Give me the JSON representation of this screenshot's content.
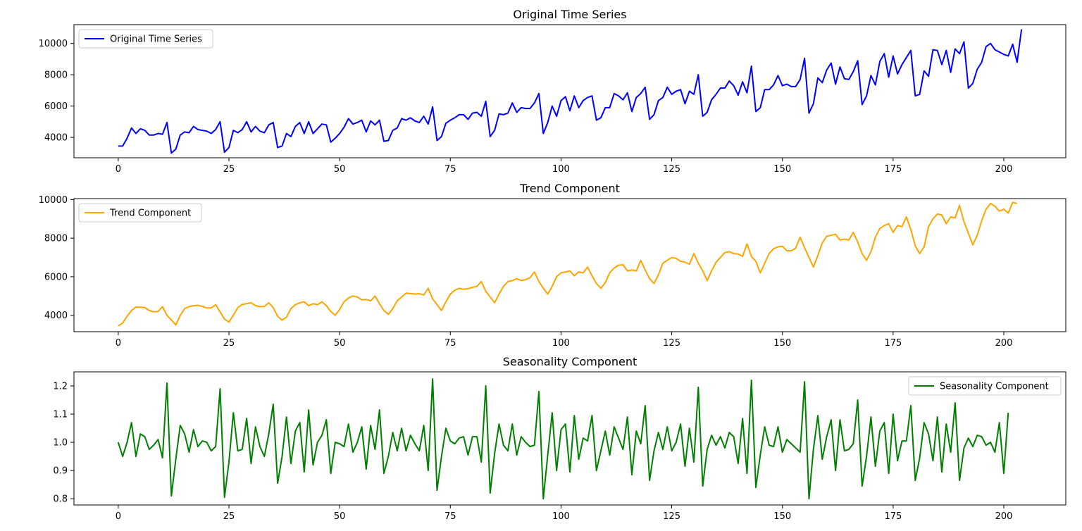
{
  "chart_data": [
    {
      "type": "line",
      "title": "Original Time Series",
      "xlabel": "",
      "ylabel": "",
      "xlim": [
        -10,
        214
      ],
      "ylim": [
        2700,
        11200
      ],
      "xticks": [
        0,
        25,
        50,
        75,
        100,
        125,
        150,
        175,
        200
      ],
      "yticks": [
        4000,
        6000,
        8000,
        10000
      ],
      "grid": false,
      "legend_position": "upper-left",
      "series": [
        {
          "name": "Original Time Series",
          "color": "#0000ff",
          "values": [
            3450,
            3450,
            3950,
            4600,
            4250,
            4550,
            4450,
            4150,
            4150,
            4250,
            4200,
            4950,
            3000,
            3250,
            4150,
            4350,
            4300,
            4700,
            4500,
            4450,
            4400,
            4250,
            4500,
            5000,
            3050,
            3350,
            4450,
            4300,
            4500,
            5000,
            4350,
            4700,
            4400,
            4300,
            4800,
            4950,
            3350,
            3450,
            4250,
            4050,
            4700,
            4950,
            4250,
            5000,
            4250,
            4550,
            4850,
            4800,
            3700,
            3950,
            4250,
            4650,
            5200,
            4850,
            4950,
            5100,
            4350,
            5050,
            4800,
            5100,
            3750,
            3800,
            4450,
            4600,
            5200,
            5100,
            5250,
            5050,
            4950,
            5350,
            4850,
            5950,
            3800,
            4050,
            4900,
            5100,
            5250,
            5450,
            5450,
            5150,
            5550,
            5600,
            5350,
            6300,
            4050,
            4450,
            5500,
            5450,
            5550,
            6200,
            5600,
            5900,
            5850,
            5850,
            6200,
            6800,
            4250,
            4950,
            6000,
            5350,
            6350,
            6600,
            5700,
            6650,
            5900,
            6350,
            6550,
            6650,
            5100,
            5250,
            5900,
            5900,
            6800,
            6650,
            6400,
            6850,
            5650,
            6550,
            6800,
            7200,
            5150,
            5450,
            6350,
            6550,
            7200,
            6750,
            6950,
            7050,
            6150,
            6950,
            6750,
            8000,
            5350,
            5600,
            6400,
            6750,
            7150,
            7150,
            7600,
            7300,
            6700,
            7550,
            6850,
            8550,
            5650,
            5900,
            7050,
            7050,
            7350,
            7950,
            7300,
            7400,
            7250,
            7250,
            7700,
            9050,
            5550,
            6150,
            7800,
            7500,
            8300,
            8750,
            7400,
            8500,
            7750,
            7700,
            8200,
            8900,
            6100,
            6650,
            7950,
            7350,
            8850,
            9350,
            7850,
            9200,
            8050,
            8650,
            9100,
            9550,
            6650,
            6750,
            8250,
            7900,
            9600,
            9550,
            8650,
            9550,
            8150,
            9650,
            9350,
            10100,
            7150,
            7450,
            8350,
            8800,
            9800,
            10000,
            9600,
            9450,
            9300,
            9200,
            9950,
            8800,
            10900
          ]
        }
      ]
    },
    {
      "type": "line",
      "title": "Trend Component",
      "xlabel": "",
      "ylabel": "",
      "xlim": [
        -10,
        214
      ],
      "ylim": [
        3150,
        10050
      ],
      "xticks": [
        0,
        25,
        50,
        75,
        100,
        125,
        150,
        175,
        200
      ],
      "yticks": [
        4000,
        6000,
        8000,
        10000
      ],
      "grid": false,
      "legend_position": "upper-left",
      "series": [
        {
          "name": "Trend Component",
          "color": "#ffa500",
          "values": [
            3450,
            3600,
            3950,
            4250,
            4430,
            4420,
            4400,
            4250,
            4180,
            4200,
            4450,
            4000,
            3760,
            3500,
            3990,
            4350,
            4450,
            4500,
            4520,
            4460,
            4380,
            4380,
            4550,
            4180,
            3800,
            3650,
            4000,
            4400,
            4560,
            4600,
            4650,
            4500,
            4450,
            4460,
            4650,
            4400,
            3950,
            3750,
            3900,
            4350,
            4550,
            4650,
            4700,
            4500,
            4600,
            4550,
            4700,
            4500,
            4200,
            4000,
            4300,
            4700,
            4900,
            5000,
            4950,
            4800,
            4820,
            4750,
            5000,
            4600,
            4250,
            4050,
            4350,
            4750,
            4950,
            5150,
            5130,
            5100,
            5120,
            5050,
            5400,
            4850,
            4550,
            4250,
            4700,
            5100,
            5300,
            5400,
            5350,
            5380,
            5450,
            5500,
            5750,
            5250,
            4950,
            4650,
            5100,
            5500,
            5750,
            5800,
            5900,
            5800,
            5850,
            5950,
            6250,
            5750,
            5400,
            5100,
            5500,
            6000,
            6200,
            6250,
            6300,
            6050,
            6250,
            6200,
            6500,
            6050,
            5650,
            5400,
            5700,
            6200,
            6450,
            6600,
            6620,
            6300,
            6350,
            6300,
            6850,
            6350,
            5900,
            5650,
            6100,
            6700,
            6850,
            7000,
            6950,
            6800,
            6750,
            6650,
            7200,
            6700,
            6300,
            5800,
            6300,
            6750,
            7000,
            7250,
            7300,
            7200,
            7180,
            7050,
            7700,
            7050,
            6800,
            6200,
            6700,
            7200,
            7450,
            7550,
            7580,
            7350,
            7350,
            7480,
            8050,
            7500,
            7000,
            6500,
            7100,
            7750,
            8100,
            8150,
            8200,
            7900,
            7950,
            7900,
            8300,
            7800,
            7200,
            6850,
            7300,
            8050,
            8500,
            8650,
            8750,
            8300,
            8650,
            8600,
            9100,
            8450,
            7600,
            7200,
            7550,
            8600,
            9000,
            9250,
            9200,
            8750,
            9100,
            9050,
            9700,
            8850,
            8250,
            7650,
            8150,
            8900,
            9500,
            9800,
            9650,
            9400,
            9500,
            9300,
            9850,
            9800
          ]
        }
      ]
    },
    {
      "type": "line",
      "title": "Seasonality Component",
      "xlabel": "",
      "ylabel": "",
      "xlim": [
        -10,
        214
      ],
      "ylim": [
        0.778,
        1.25
      ],
      "xticks": [
        0,
        25,
        50,
        75,
        100,
        125,
        150,
        175,
        200
      ],
      "yticks": [
        0.8,
        0.9,
        1.0,
        1.1,
        1.2
      ],
      "grid": false,
      "legend_position": "upper-right",
      "series": [
        {
          "name": "Seasonality Component",
          "color": "#008000",
          "values": [
            1.0,
            0.95,
            1.0,
            1.07,
            0.95,
            1.03,
            1.02,
            0.975,
            0.99,
            1.01,
            0.945,
            1.21,
            0.81,
            0.94,
            1.06,
            1.03,
            0.965,
            1.045,
            0.985,
            1.005,
            1.0,
            0.97,
            0.985,
            1.19,
            0.805,
            0.93,
            1.105,
            0.97,
            0.975,
            1.085,
            0.925,
            1.055,
            0.985,
            0.95,
            1.03,
            1.135,
            0.855,
            0.95,
            1.09,
            0.925,
            1.04,
            1.07,
            0.895,
            1.115,
            0.92,
            1.0,
            1.025,
            1.08,
            0.89,
            1.0,
            0.995,
            0.985,
            1.065,
            0.965,
            1.0,
            1.055,
            0.905,
            1.06,
            0.975,
            1.115,
            0.89,
            0.95,
            1.035,
            0.97,
            1.05,
            0.97,
            1.025,
            0.995,
            0.97,
            1.06,
            0.9,
            1.225,
            0.83,
            0.95,
            1.05,
            1.005,
            0.995,
            1.015,
            1.02,
            0.955,
            1.02,
            1.02,
            0.93,
            1.2,
            0.82,
            0.96,
            1.065,
            0.99,
            0.97,
            1.065,
            0.955,
            1.02,
            1.0,
            0.985,
            0.99,
            1.18,
            0.8,
            0.955,
            1.105,
            0.9,
            1.045,
            1.065,
            0.895,
            1.095,
            0.94,
            1.015,
            1.005,
            1.095,
            0.9,
            0.97,
            1.04,
            0.955,
            1.055,
            1.015,
            0.975,
            1.09,
            0.885,
            1.04,
            0.995,
            1.13,
            0.865,
            0.97,
            1.035,
            0.975,
            1.055,
            0.97,
            1.0,
            1.065,
            0.915,
            1.05,
            0.93,
            1.195,
            0.845,
            0.975,
            1.025,
            0.99,
            1.02,
            0.98,
            1.035,
            1.02,
            0.925,
            1.085,
            0.89,
            1.22,
            0.84,
            0.955,
            1.055,
            0.99,
            0.985,
            1.055,
            0.965,
            1.01,
            0.995,
            0.98,
            0.965,
            1.215,
            0.8,
            0.975,
            1.095,
            0.94,
            1.02,
            1.08,
            0.9,
            1.08,
            0.97,
            0.975,
            0.995,
            1.15,
            0.845,
            0.95,
            1.09,
            0.915,
            1.04,
            1.07,
            0.89,
            1.1,
            0.935,
            1.005,
            1.005,
            1.13,
            0.865,
            0.945,
            1.07,
            1.03,
            0.935,
            1.09,
            0.895,
            1.065,
            0.965,
            1.14,
            0.865,
            0.98,
            1.015,
            0.985,
            1.025,
            1.02,
            0.99,
            1.0,
            0.965,
            1.07,
            0.89,
            1.105
          ]
        }
      ]
    }
  ]
}
